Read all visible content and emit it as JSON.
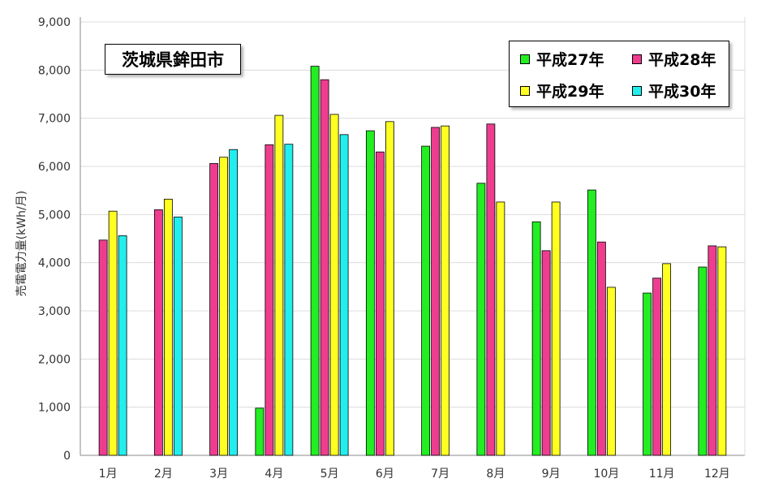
{
  "chart_data": {
    "type": "bar",
    "title": "茨城県鉾田市",
    "ylabel": "売電電力量(kWh/月)",
    "xlabel": "",
    "ylim": [
      0,
      9000
    ],
    "yticks": [
      "0",
      "1,000",
      "2,000",
      "3,000",
      "4,000",
      "5,000",
      "6,000",
      "7,000",
      "8,000",
      "9,000"
    ],
    "ytick_values": [
      0,
      1000,
      2000,
      3000,
      4000,
      5000,
      6000,
      7000,
      8000,
      9000
    ],
    "grid": true,
    "legend_position": "top-right",
    "categories": [
      "1月",
      "2月",
      "3月",
      "4月",
      "5月",
      "6月",
      "7月",
      "8月",
      "9月",
      "10月",
      "11月",
      "12月"
    ],
    "series": [
      {
        "name": "平成27年",
        "color": "#22ee22",
        "values": [
          null,
          null,
          null,
          980,
          8080,
          6740,
          6420,
          5650,
          4850,
          5510,
          3370,
          3910
        ]
      },
      {
        "name": "平成28年",
        "color": "#ee3d8f",
        "values": [
          4470,
          5100,
          6060,
          6450,
          7800,
          6300,
          6810,
          6880,
          4250,
          4430,
          3680,
          4350
        ]
      },
      {
        "name": "平成29年",
        "color": "#ffff22",
        "values": [
          5070,
          5320,
          6190,
          7060,
          7080,
          6930,
          6840,
          5260,
          5260,
          3490,
          3980,
          4330
        ]
      },
      {
        "name": "平成30年",
        "color": "#22eeee",
        "values": [
          4560,
          4950,
          6350,
          6460,
          6660,
          null,
          null,
          null,
          null,
          null,
          null,
          null
        ]
      }
    ]
  }
}
